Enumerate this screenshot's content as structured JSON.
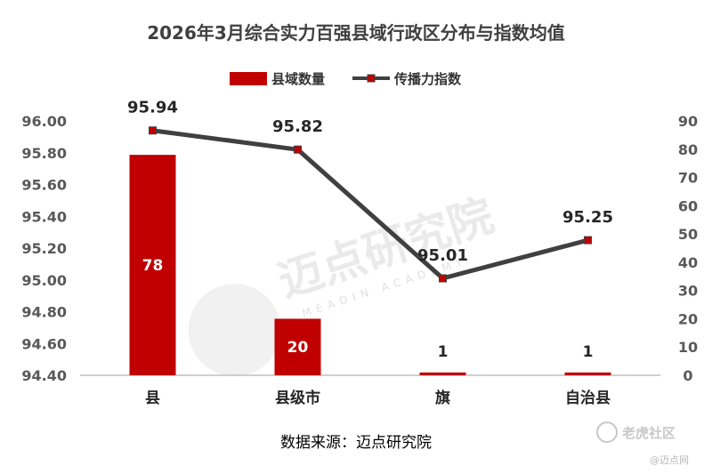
{
  "chart_data": {
    "type": "bar+line",
    "title": "2026年3月综合实力百强县域行政区分布与指数均值",
    "categories": [
      "县",
      "县级市",
      "旗",
      "自治县"
    ],
    "series": [
      {
        "name": "县域数量",
        "type": "bar",
        "axis": "right",
        "values": [
          78,
          20,
          1,
          1
        ],
        "color": "#c00000"
      },
      {
        "name": "传播力指数",
        "type": "line",
        "axis": "left",
        "values": [
          95.94,
          95.82,
          95.01,
          95.25
        ],
        "color": "#404040",
        "marker_color": "#c00000"
      }
    ],
    "value_labels": {
      "bars": [
        "78",
        "20",
        "1",
        "1"
      ],
      "line": [
        "95.94",
        "95.82",
        "95.01",
        "95.25"
      ]
    },
    "left_axis": {
      "min": 94.4,
      "max": 96.0,
      "step": 0.2,
      "ticks": [
        "94.40",
        "94.60",
        "94.80",
        "95.00",
        "95.20",
        "95.40",
        "95.60",
        "95.80",
        "96.00"
      ]
    },
    "right_axis": {
      "min": 0,
      "max": 90,
      "step": 10,
      "ticks": [
        "0",
        "10",
        "20",
        "30",
        "40",
        "50",
        "60",
        "70",
        "80",
        "90"
      ]
    },
    "legend_position": "top-center",
    "grid": false
  },
  "source_text": "数据来源：迈点研究院",
  "watermark": {
    "main": "迈点研究院",
    "sub": "MEADIN ACADEMY"
  },
  "corner_watermark": {
    "main": "老虎社区",
    "sub": "@迈点网"
  }
}
